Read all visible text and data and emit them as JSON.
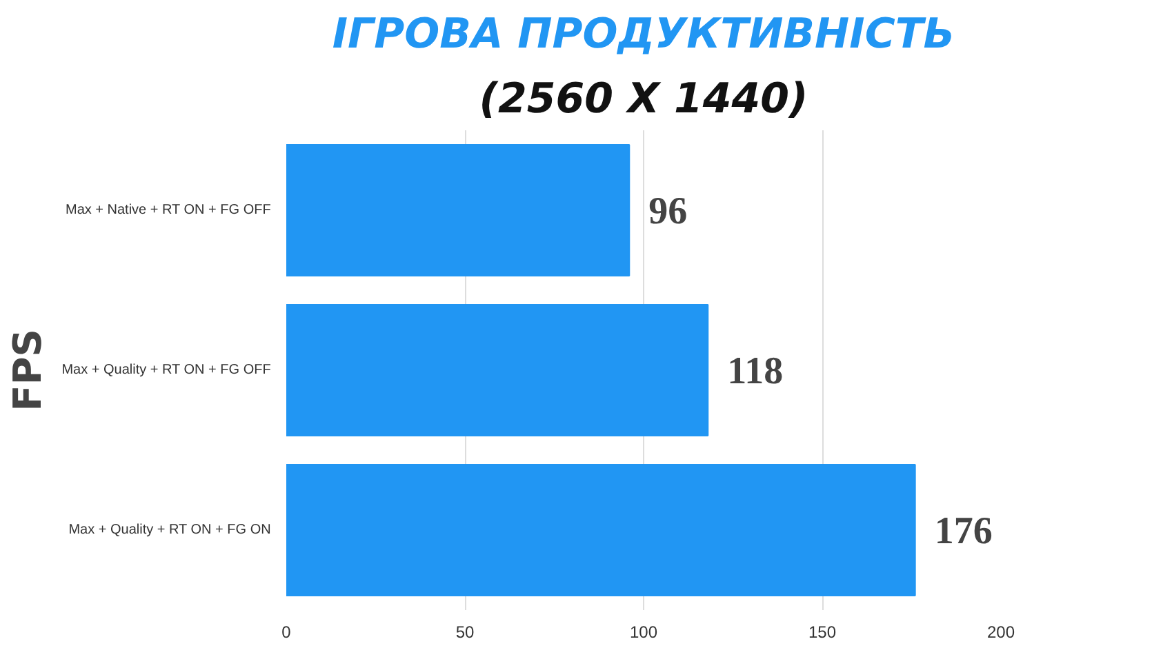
{
  "chart_data": {
    "type": "bar",
    "orientation": "horizontal",
    "title": "ІГРОВА ПРОДУКТИВНІСТЬ",
    "subtitle": "(2560 X 1440)",
    "ylabel": "FPS",
    "categories": [
      "Max + Native + RT ON + FG OFF",
      "Max + Quality + RT ON + FG OFF",
      "Max + Quality + RT ON + FG ON"
    ],
    "values": [
      96,
      118,
      176
    ],
    "color": "#2196f3",
    "data_labels": true,
    "xlim": [
      0,
      200
    ],
    "xticks": [
      0,
      50,
      100,
      150,
      200
    ],
    "grid": "x"
  }
}
